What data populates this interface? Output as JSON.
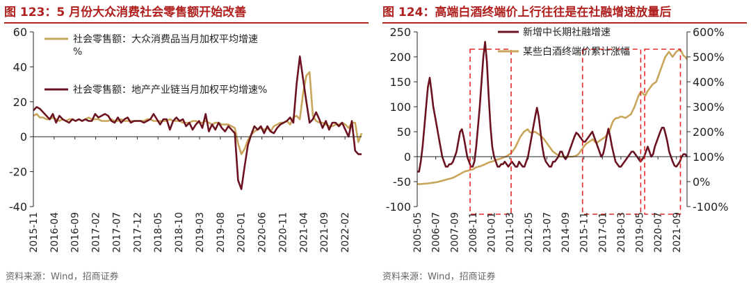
{
  "panels": [
    {
      "title": "图 123：5 月份大众消费社会零售额开始改善",
      "source": "资料来源：Wind，招商证券"
    },
    {
      "title": "图 124：高端白酒终端价上行往往是在社融增速放量后",
      "source": "资料来源：Wind，招商证券"
    }
  ],
  "chart_data": [
    {
      "type": "line",
      "ylim": [
        -40,
        60
      ],
      "yticks": [
        "60",
        "40",
        "20",
        "0",
        "-20",
        "-40"
      ],
      "xticks": [
        "2015-11",
        "2016-04",
        "2016-09",
        "2017-02",
        "2017-07",
        "2017-12",
        "2018-05",
        "2018-10",
        "2019-03",
        "2019-08",
        "2020-01",
        "2020-06",
        "2020-11",
        "2021-04",
        "2021-09",
        "2022-02"
      ],
      "x_range": [
        "2015-11",
        "2022-06"
      ],
      "series": [
        {
          "name": "社会零售额：大众消费品当月加权平均增速%",
          "color": "#c8a55a",
          "values": [
            12,
            13,
            11,
            11,
            10,
            10,
            11,
            10,
            9,
            10,
            9,
            10,
            10,
            9,
            10,
            9,
            10,
            11,
            10,
            10,
            10,
            9,
            9,
            9,
            10,
            9,
            9,
            10,
            9,
            9,
            9,
            9,
            9,
            9,
            9,
            10,
            10,
            9,
            9,
            9,
            9,
            9,
            10,
            9,
            9,
            9,
            8,
            8,
            8,
            9,
            9,
            8,
            8,
            9,
            8,
            7,
            8,
            8,
            7,
            7,
            7,
            6,
            5,
            -4,
            -10,
            -7,
            -2,
            1,
            3,
            4,
            5,
            4,
            5,
            3,
            6,
            7,
            8,
            8,
            9,
            7,
            11,
            12,
            10,
            25,
            35,
            37,
            12,
            9,
            8,
            8,
            7,
            6,
            6,
            7,
            7,
            8,
            7,
            5,
            8,
            8,
            -3,
            2
          ]
        },
        {
          "name": "社会零售额：地产产业链当月加权平均增速%",
          "color": "#6b1220",
          "values": [
            15,
            17,
            16,
            14,
            12,
            10,
            13,
            8,
            12,
            10,
            9,
            8,
            10,
            9,
            10,
            9,
            10,
            9,
            9,
            13,
            11,
            12,
            13,
            12,
            9,
            8,
            11,
            8,
            10,
            11,
            8,
            9,
            9,
            9,
            8,
            9,
            10,
            13,
            10,
            7,
            10,
            10,
            4,
            9,
            11,
            9,
            10,
            6,
            8,
            4,
            7,
            9,
            5,
            13,
            3,
            7,
            4,
            8,
            5,
            3,
            6,
            4,
            2,
            -25,
            -30,
            -17,
            -5,
            1,
            6,
            4,
            6,
            2,
            6,
            3,
            2,
            5,
            7,
            8,
            9,
            11,
            8,
            30,
            46,
            33,
            20,
            8,
            10,
            14,
            10,
            5,
            9,
            4,
            8,
            8,
            6,
            8,
            4,
            0,
            9,
            -8,
            -10,
            -10
          ]
        }
      ]
    },
    {
      "type": "line",
      "ylim_left": [
        -100,
        250
      ],
      "ylim_right": [
        -100,
        600
      ],
      "yticks_left": [
        "250",
        "200",
        "150",
        "100",
        "50",
        "0",
        "-50",
        "-100"
      ],
      "yticks_right": [
        "600%",
        "500%",
        "400%",
        "300%",
        "200%",
        "100%",
        "0%",
        "-100%"
      ],
      "xticks": [
        "2005-05",
        "2006-07",
        "2007-09",
        "2008-11",
        "2010-01",
        "2011-03",
        "2012-05",
        "2013-07",
        "2014-09",
        "2015-11",
        "2017-01",
        "2018-03",
        "2019-05",
        "2020-07",
        "2021-09"
      ],
      "x_range": [
        "2005-05",
        "2022-05"
      ],
      "series": [
        {
          "name": "新增中长期社融增速",
          "color": "#6b1220",
          "axis": "left",
          "values": [
            -30,
            -30,
            -10,
            20,
            60,
            100,
            140,
            158,
            130,
            100,
            80,
            60,
            40,
            20,
            0,
            -10,
            -20,
            -20,
            -15,
            -15,
            -10,
            0,
            10,
            30,
            50,
            55,
            40,
            20,
            0,
            -10,
            -20,
            -20,
            -10,
            20,
            60,
            100,
            150,
            200,
            230,
            190,
            120,
            60,
            20,
            0,
            -10,
            -20,
            -20,
            -15,
            -15,
            -10,
            -15,
            -20,
            -15,
            -10,
            -15,
            -20,
            -20,
            -10,
            -15,
            -20,
            -20,
            -10,
            0,
            20,
            40,
            60,
            80,
            98,
            80,
            50,
            20,
            0,
            -10,
            -15,
            -20,
            -20,
            -10,
            -10,
            -5,
            0,
            10,
            10,
            0,
            -5,
            0,
            10,
            20,
            30,
            40,
            48,
            45,
            40,
            35,
            30,
            30,
            35,
            40,
            45,
            50,
            40,
            30,
            20,
            10,
            0,
            5,
            20,
            40,
            56,
            40,
            20,
            5,
            -10,
            -15,
            -20,
            -20,
            -15,
            -10,
            -5,
            0,
            5,
            10,
            10,
            5,
            0,
            -5,
            -10,
            -5,
            0,
            10,
            20,
            10,
            0,
            5,
            20,
            30,
            40,
            50,
            58,
            58,
            45,
            30,
            10,
            0,
            -10,
            -18,
            -20,
            -15,
            -10,
            0,
            5,
            5,
            0
          ]
        },
        {
          "name": "某些白酒终端价累计涨幅",
          "color": "#c8a55a",
          "axis": "right",
          "values": [
            -10,
            -10,
            -10,
            -9,
            -8,
            -8,
            -7,
            -6,
            -5,
            -4,
            -3,
            -2,
            0,
            2,
            4,
            6,
            8,
            10,
            12,
            14,
            16,
            20,
            24,
            28,
            32,
            36,
            40,
            42,
            44,
            46,
            48,
            50,
            55,
            58,
            60,
            62,
            65,
            68,
            72,
            75,
            78,
            80,
            82,
            85,
            88,
            90,
            92,
            95,
            98,
            100,
            105,
            110,
            115,
            125,
            135,
            150,
            165,
            180,
            190,
            200,
            205,
            210,
            200,
            195,
            198,
            200,
            195,
            190,
            185,
            178,
            170,
            160,
            150,
            140,
            130,
            120,
            115,
            110,
            105,
            100,
            100,
            100,
            100,
            100,
            100,
            100,
            100,
            102,
            105,
            110,
            120,
            130,
            140,
            150,
            155,
            160,
            165,
            170,
            160,
            155,
            160,
            165,
            170,
            175,
            180,
            190,
            200,
            220,
            240,
            250,
            255,
            255,
            260,
            260,
            258,
            255,
            260,
            265,
            270,
            285,
            300,
            320,
            340,
            355,
            360,
            350,
            345,
            360,
            370,
            380,
            390,
            395,
            400,
            420,
            440,
            460,
            480,
            500,
            510,
            520,
            510,
            500,
            510,
            520,
            525,
            530,
            520,
            505,
            500,
            490
          ]
        }
      ],
      "highlight_ranges": [
        [
          "2008-09",
          "2011-04"
        ],
        [
          "2015-10",
          "2019-06"
        ],
        [
          "2019-09",
          "2021-12"
        ]
      ]
    }
  ]
}
